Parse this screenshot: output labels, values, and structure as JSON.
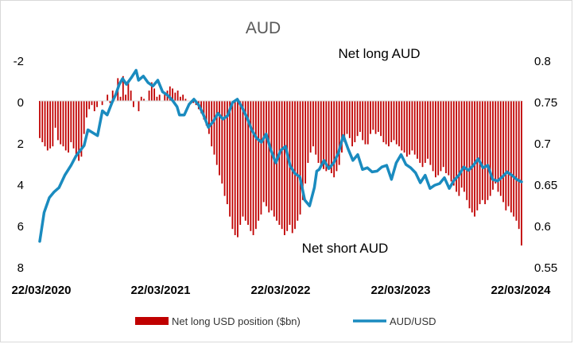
{
  "chart_data": {
    "type": "bar+line",
    "title": "AUD",
    "annotations": [
      "Net long AUD",
      "Net short AUD"
    ],
    "x_ticks": [
      "22/03/2020",
      "22/03/2021",
      "22/03/2022",
      "22/03/2023",
      "22/03/2024"
    ],
    "left_axis": {
      "ticks": [
        "-2",
        "0",
        "2",
        "4",
        "6",
        "8"
      ],
      "range": [
        -2,
        8
      ],
      "inverted": true
    },
    "right_axis": {
      "ticks": [
        "0.8",
        "0.75",
        "0.7",
        "0.65",
        "0.6",
        "0.55"
      ],
      "range": [
        0.55,
        0.8
      ]
    },
    "grid": false,
    "legend_position": "bottom",
    "series": [
      {
        "name": "Net long USD position ($bn)",
        "type": "bar",
        "axis": "left",
        "color": "#c00000",
        "values": [
          1.8,
          2.0,
          2.2,
          2.4,
          2.3,
          2.2,
          1.3,
          1.9,
          2.1,
          2.2,
          2.4,
          2.5,
          2.0,
          2.3,
          2.7,
          2.9,
          2.7,
          1.6,
          0.8,
          0.4,
          0.2,
          0.5,
          0.3,
          0.0,
          0.2,
          0.0,
          -0.3,
          0.1,
          -0.5,
          0.0,
          -1.1,
          -0.2,
          -1.2,
          -0.3,
          -1.0,
          -0.5,
          0.3,
          0.0,
          0.5,
          -0.2,
          -0.1,
          0.0,
          -0.5,
          -0.9,
          -0.6,
          -0.2,
          -0.3,
          0.0,
          -0.4,
          -0.5,
          -0.7,
          -0.6,
          -0.4,
          -0.5,
          -0.2,
          -0.3,
          -0.1,
          0.0,
          0.0,
          0.1,
          0.2,
          0.4,
          0.6,
          0.9,
          1.2,
          1.6,
          2.2,
          2.6,
          3.1,
          3.6,
          4.0,
          4.6,
          5.0,
          5.6,
          6.2,
          6.5,
          6.6,
          6.0,
          5.6,
          5.8,
          6.0,
          6.3,
          6.5,
          6.2,
          5.8,
          5.5,
          4.9,
          5.1,
          5.4,
          5.3,
          5.6,
          5.8,
          6.0,
          6.2,
          6.5,
          6.3,
          6.0,
          6.4,
          6.2,
          5.8,
          5.5,
          4.8,
          4.0,
          3.0,
          2.5,
          2.2,
          2.6,
          3.0,
          3.1,
          3.3,
          3.4,
          3.2,
          3.5,
          3.7,
          3.4,
          3.1,
          2.5,
          2.0,
          1.6,
          1.8,
          2.2,
          2.0,
          1.7,
          1.5,
          1.9,
          2.1,
          2.1,
          1.6,
          1.4,
          1.6,
          1.5,
          1.7,
          2.0,
          2.1,
          2.2,
          2.0,
          1.9,
          2.1,
          2.2,
          2.4,
          2.5,
          2.7,
          2.6,
          2.4,
          2.6,
          2.8,
          3.0,
          3.2,
          3.0,
          2.8,
          3.1,
          3.4,
          3.7,
          3.6,
          3.4,
          3.2,
          3.5,
          3.6,
          3.9,
          4.1,
          4.4,
          4.6,
          4.2,
          4.4,
          4.8,
          5.2,
          5.4,
          5.6,
          5.3,
          5.0,
          4.8,
          5.0,
          4.8,
          4.6,
          4.3,
          4.0,
          4.4,
          4.6,
          4.9,
          5.3,
          5.1,
          5.4,
          5.6,
          5.8,
          6.2,
          7.0
        ]
      },
      {
        "name": "AUD/USD",
        "type": "line",
        "axis": "right",
        "color": "#1a8bbf",
        "x": [
          0.0,
          0.009,
          0.02,
          0.03,
          0.04,
          0.052,
          0.065,
          0.075,
          0.08,
          0.092,
          0.1,
          0.12,
          0.13,
          0.14,
          0.15,
          0.158,
          0.165,
          0.172,
          0.18,
          0.19,
          0.2,
          0.205,
          0.215,
          0.225,
          0.235,
          0.245,
          0.255,
          0.265,
          0.275,
          0.285,
          0.29,
          0.3,
          0.31,
          0.32,
          0.33,
          0.34,
          0.35,
          0.36,
          0.37,
          0.38,
          0.39,
          0.4,
          0.41,
          0.42,
          0.43,
          0.44,
          0.45,
          0.46,
          0.47,
          0.48,
          0.49,
          0.5,
          0.51,
          0.52,
          0.53,
          0.54,
          0.55,
          0.56,
          0.57,
          0.575,
          0.58,
          0.59,
          0.6,
          0.61,
          0.62,
          0.63,
          0.64,
          0.65,
          0.66,
          0.67,
          0.68,
          0.69,
          0.7,
          0.71,
          0.72,
          0.73,
          0.74,
          0.75,
          0.76,
          0.77,
          0.78,
          0.79,
          0.8,
          0.81,
          0.82,
          0.83,
          0.84,
          0.85,
          0.86,
          0.87,
          0.88,
          0.89,
          0.9,
          0.91,
          0.92,
          0.93,
          0.94,
          0.95,
          0.96,
          0.97,
          0.98,
          0.99,
          1.0
        ],
        "values": [
          0.58,
          0.615,
          0.633,
          0.64,
          0.645,
          0.66,
          0.672,
          0.683,
          0.687,
          0.696,
          0.715,
          0.708,
          0.738,
          0.733,
          0.748,
          0.758,
          0.77,
          0.777,
          0.77,
          0.778,
          0.787,
          0.775,
          0.78,
          0.772,
          0.768,
          0.775,
          0.761,
          0.757,
          0.751,
          0.743,
          0.733,
          0.733,
          0.746,
          0.752,
          0.745,
          0.733,
          0.718,
          0.725,
          0.735,
          0.728,
          0.732,
          0.748,
          0.752,
          0.742,
          0.73,
          0.715,
          0.705,
          0.7,
          0.71,
          0.69,
          0.675,
          0.69,
          0.695,
          0.671,
          0.662,
          0.658,
          0.63,
          0.623,
          0.645,
          0.665,
          0.667,
          0.678,
          0.668,
          0.675,
          0.687,
          0.708,
          0.692,
          0.678,
          0.685,
          0.667,
          0.669,
          0.664,
          0.665,
          0.67,
          0.672,
          0.655,
          0.675,
          0.685,
          0.673,
          0.669,
          0.663,
          0.651,
          0.66,
          0.644,
          0.648,
          0.65,
          0.657,
          0.644,
          0.654,
          0.66,
          0.67,
          0.666,
          0.672,
          0.68,
          0.669,
          0.672,
          0.655,
          0.653,
          0.658,
          0.664,
          0.66,
          0.655,
          0.652
        ]
      }
    ]
  }
}
